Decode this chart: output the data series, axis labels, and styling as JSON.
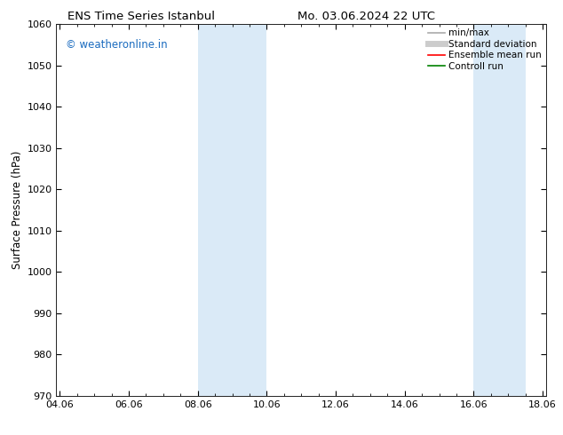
{
  "title_left": "ENS Time Series Istanbul",
  "title_right": "Mo. 03.06.2024 22 UTC",
  "ylabel": "Surface Pressure (hPa)",
  "ylim": [
    970,
    1060
  ],
  "yticks": [
    970,
    980,
    990,
    1000,
    1010,
    1020,
    1030,
    1040,
    1050,
    1060
  ],
  "xtick_labels": [
    "04.06",
    "06.06",
    "08.06",
    "10.06",
    "12.06",
    "14.06",
    "16.06",
    "18.06"
  ],
  "xtick_positions": [
    0,
    2,
    4,
    6,
    8,
    10,
    12,
    14
  ],
  "xmin": -0.1,
  "xmax": 14.1,
  "shaded_bands": [
    {
      "xstart": 4.0,
      "xend": 6.0
    },
    {
      "xstart": 12.0,
      "xend": 13.5
    }
  ],
  "shaded_color": "#daeaf7",
  "watermark_text": "© weatheronline.in",
  "watermark_color": "#1a6bbf",
  "background_color": "#ffffff",
  "legend_items": [
    {
      "label": "min/max",
      "color": "#aaaaaa",
      "lw": 1.2
    },
    {
      "label": "Standard deviation",
      "color": "#cccccc",
      "lw": 5
    },
    {
      "label": "Ensemble mean run",
      "color": "#ff0000",
      "lw": 1.2
    },
    {
      "label": "Controll run",
      "color": "#008000",
      "lw": 1.2
    }
  ],
  "title_fontsize": 9.5,
  "tick_fontsize": 8,
  "ylabel_fontsize": 8.5,
  "watermark_fontsize": 8.5,
  "legend_fontsize": 7.5
}
